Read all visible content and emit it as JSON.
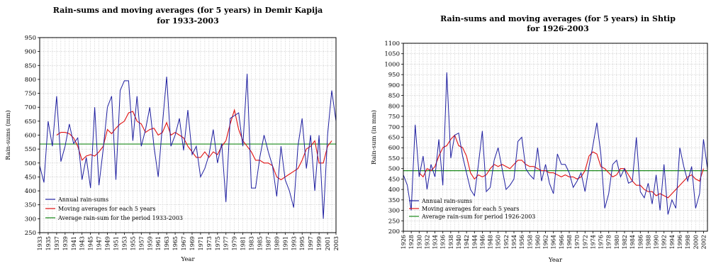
{
  "chart_data": [
    {
      "type": "line",
      "title": "Rain-sums and moving averages (for 5 years) in Demir Kapija",
      "subtitle": "for 1933-2003",
      "xlabel": "Year",
      "ylabel": "Rain-sums (mm)",
      "ylim": [
        250,
        950
      ],
      "yticks": [
        250,
        300,
        350,
        400,
        450,
        500,
        550,
        600,
        650,
        700,
        750,
        800,
        850,
        900,
        950
      ],
      "xlim": [
        1933,
        2003
      ],
      "xticks": [
        1933,
        1935,
        1937,
        1939,
        1941,
        1943,
        1945,
        1947,
        1949,
        1951,
        1953,
        1955,
        1957,
        1959,
        1961,
        1963,
        1965,
        1967,
        1969,
        1971,
        1973,
        1975,
        1977,
        1979,
        1981,
        1983,
        1985,
        1987,
        1989,
        1991,
        1993,
        1995,
        1997,
        1999,
        2001,
        2003
      ],
      "grid": true,
      "legend_position": "bottom-left",
      "series": [
        {
          "name": "Annual rain-sums",
          "color": "#1f1fa0",
          "x": [
            1933,
            1934,
            1935,
            1936,
            1937,
            1938,
            1939,
            1940,
            1941,
            1942,
            1943,
            1944,
            1945,
            1946,
            1947,
            1948,
            1949,
            1950,
            1951,
            1952,
            1953,
            1954,
            1955,
            1956,
            1957,
            1958,
            1959,
            1960,
            1961,
            1962,
            1963,
            1964,
            1965,
            1966,
            1967,
            1968,
            1969,
            1970,
            1971,
            1972,
            1973,
            1974,
            1975,
            1976,
            1977,
            1978,
            1979,
            1980,
            1981,
            1982,
            1983,
            1984,
            1985,
            1986,
            1987,
            1988,
            1989,
            1990,
            1991,
            1992,
            1993,
            1994,
            1995,
            1996,
            1997,
            1998,
            1999,
            2000,
            2001,
            2002,
            2003
          ],
          "y": [
            490,
            430,
            650,
            560,
            740,
            505,
            560,
            640,
            570,
            590,
            440,
            520,
            410,
            700,
            420,
            550,
            700,
            740,
            440,
            760,
            795,
            795,
            580,
            740,
            560,
            620,
            700,
            560,
            450,
            640,
            810,
            560,
            600,
            660,
            545,
            690,
            530,
            560,
            450,
            480,
            530,
            620,
            500,
            570,
            360,
            660,
            670,
            680,
            560,
            820,
            410,
            410,
            520,
            600,
            540,
            490,
            380,
            560,
            440,
            400,
            340,
            560,
            660,
            480,
            600,
            400,
            600,
            300,
            600,
            760,
            650
          ]
        },
        {
          "name": "Moving averages for each 5 years",
          "color": "#e01010",
          "x": [
            1937,
            1938,
            1939,
            1940,
            1941,
            1942,
            1943,
            1944,
            1945,
            1946,
            1947,
            1948,
            1949,
            1950,
            1951,
            1952,
            1953,
            1954,
            1955,
            1956,
            1957,
            1958,
            1959,
            1960,
            1961,
            1962,
            1963,
            1964,
            1965,
            1966,
            1967,
            1968,
            1969,
            1970,
            1971,
            1972,
            1973,
            1974,
            1975,
            1976,
            1977,
            1978,
            1979,
            1980,
            1981,
            1982,
            1983,
            1984,
            1985,
            1986,
            1987,
            1988,
            1989,
            1990,
            1991,
            1992,
            1993,
            1994,
            1995,
            1996,
            1997,
            1998,
            1999,
            2000,
            2001,
            2002
          ],
          "y": [
            600,
            610,
            610,
            605,
            590,
            560,
            510,
            525,
            530,
            525,
            540,
            560,
            620,
            605,
            625,
            640,
            650,
            680,
            685,
            650,
            640,
            610,
            620,
            625,
            600,
            610,
            645,
            600,
            610,
            600,
            590,
            560,
            540,
            520,
            520,
            540,
            520,
            540,
            530,
            560,
            580,
            640,
            690,
            620,
            580,
            560,
            540,
            510,
            510,
            500,
            500,
            490,
            450,
            440,
            450,
            460,
            470,
            480,
            510,
            550,
            560,
            580,
            500,
            500,
            560,
            580
          ]
        },
        {
          "name": "Average rain-sum for the period 1933-2003",
          "color": "#1a8a1a",
          "constant": 568
        }
      ]
    },
    {
      "type": "line",
      "title": "Rain-sums and moving averages (for 5 years) in Shtip",
      "subtitle": "for 1926-2003",
      "xlabel": "Year",
      "ylabel": "Rain-sum (in mm)",
      "ylim": [
        200,
        1100
      ],
      "yticks": [
        200,
        250,
        300,
        350,
        400,
        450,
        500,
        550,
        600,
        650,
        700,
        750,
        800,
        850,
        900,
        950,
        1000,
        1050,
        1100
      ],
      "xlim": [
        1926,
        2003
      ],
      "xticks": [
        1926,
        1928,
        1930,
        1932,
        1934,
        1936,
        1938,
        1940,
        1942,
        1944,
        1946,
        1948,
        1950,
        1952,
        1954,
        1956,
        1958,
        1960,
        1962,
        1964,
        1966,
        1968,
        1970,
        1972,
        1974,
        1976,
        1978,
        1980,
        1982,
        1984,
        1986,
        1988,
        1990,
        1992,
        1994,
        1996,
        1998,
        2000,
        2002
      ],
      "grid": true,
      "legend_position": "bottom-left",
      "series": [
        {
          "name": "Annual rain-sums",
          "color": "#1f1fa0",
          "x": [
            1926,
            1927,
            1928,
            1929,
            1930,
            1931,
            1932,
            1933,
            1934,
            1935,
            1936,
            1937,
            1938,
            1939,
            1940,
            1941,
            1942,
            1943,
            1944,
            1945,
            1946,
            1947,
            1948,
            1949,
            1950,
            1951,
            1952,
            1953,
            1954,
            1955,
            1956,
            1957,
            1958,
            1959,
            1960,
            1961,
            1962,
            1963,
            1964,
            1965,
            1966,
            1967,
            1968,
            1969,
            1970,
            1971,
            1972,
            1973,
            1974,
            1975,
            1976,
            1977,
            1978,
            1979,
            1980,
            1981,
            1982,
            1983,
            1984,
            1985,
            1986,
            1987,
            1988,
            1989,
            1990,
            1991,
            1992,
            1993,
            1994,
            1995,
            1996,
            1997,
            1998,
            1999,
            2000,
            2001,
            2002,
            2003
          ],
          "y": [
            470,
            420,
            300,
            710,
            460,
            560,
            400,
            520,
            460,
            640,
            420,
            960,
            550,
            660,
            670,
            560,
            480,
            400,
            370,
            520,
            680,
            390,
            410,
            540,
            600,
            500,
            400,
            420,
            450,
            630,
            650,
            500,
            470,
            450,
            600,
            440,
            520,
            430,
            380,
            570,
            520,
            520,
            480,
            410,
            440,
            480,
            390,
            510,
            610,
            720,
            570,
            310,
            380,
            520,
            540,
            460,
            500,
            430,
            440,
            650,
            390,
            360,
            430,
            330,
            470,
            300,
            520,
            280,
            350,
            310,
            600,
            510,
            440,
            510,
            310,
            380,
            640,
            500
          ]
        },
        {
          "name": "Moving averages for each 5 years",
          "color": "#e01010",
          "x": [
            1930,
            1931,
            1932,
            1933,
            1934,
            1935,
            1936,
            1937,
            1938,
            1939,
            1940,
            1941,
            1942,
            1943,
            1944,
            1945,
            1946,
            1947,
            1948,
            1949,
            1950,
            1951,
            1952,
            1953,
            1954,
            1955,
            1956,
            1957,
            1958,
            1959,
            1960,
            1961,
            1962,
            1963,
            1964,
            1965,
            1966,
            1967,
            1968,
            1969,
            1970,
            1971,
            1972,
            1973,
            1974,
            1975,
            1976,
            1977,
            1978,
            1979,
            1980,
            1981,
            1982,
            1983,
            1984,
            1985,
            1986,
            1987,
            1988,
            1989,
            1990,
            1991,
            1992,
            1993,
            1994,
            1995,
            1996,
            1997,
            1998,
            1999,
            2000,
            2001,
            2002
          ],
          "y": [
            480,
            460,
            500,
            490,
            510,
            560,
            600,
            610,
            640,
            660,
            610,
            600,
            560,
            480,
            450,
            470,
            460,
            470,
            500,
            520,
            510,
            520,
            510,
            500,
            520,
            540,
            540,
            520,
            510,
            510,
            500,
            490,
            490,
            480,
            480,
            470,
            460,
            470,
            460,
            460,
            450,
            460,
            490,
            560,
            580,
            570,
            510,
            500,
            480,
            460,
            470,
            500,
            500,
            470,
            440,
            420,
            420,
            400,
            390,
            390,
            370,
            380,
            370,
            360,
            380,
            400,
            420,
            440,
            460,
            470,
            450,
            440,
            500
          ]
        },
        {
          "name": "Average rain-sum for period 1926-2003",
          "color": "#1a8a1a",
          "constant": 490
        }
      ]
    }
  ]
}
